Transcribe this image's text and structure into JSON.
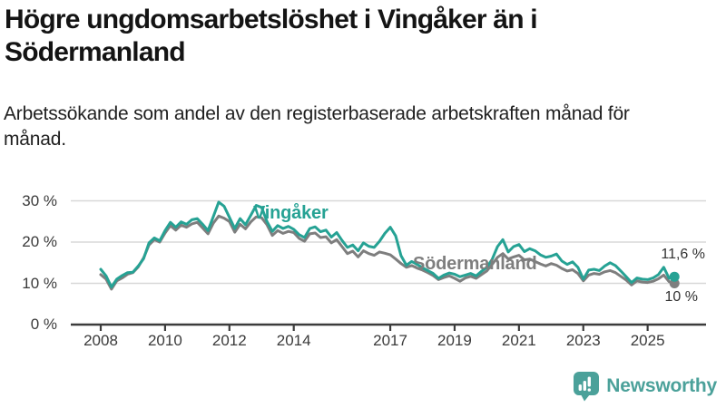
{
  "header": {
    "title": "Högre ungdomsarbetslöshet i Vingåker än i Södermanland",
    "subtitle": "Arbetssökande som andel av den registerbaserade arbetskraften månad för månad."
  },
  "colors": {
    "vingaker": "#26a294",
    "sodermanland": "#7e7e7e",
    "grid": "#d8d8d8",
    "axis": "#3c3c3c",
    "tick_text": "#3a3a3a",
    "value_label_text": "#333333",
    "logo_teal": "#4ba19a"
  },
  "chart_data": {
    "type": "line",
    "title": "Högre ungdomsarbetslöshet i Vingåker än i Södermanland",
    "subtitle": "Arbetssökande som andel av den registerbaserade arbetskraften månad för månad.",
    "unit": "%",
    "grid": "horizontal",
    "legend": "inline-labels",
    "ylim": [
      0,
      32
    ],
    "x_start": 2008.0,
    "x_step_years": 0.1667,
    "y_ticks": [
      {
        "value": 0,
        "label": "0 %"
      },
      {
        "value": 10,
        "label": "10 %"
      },
      {
        "value": 20,
        "label": "20 %"
      },
      {
        "value": 30,
        "label": "30 %"
      }
    ],
    "x_ticks": [
      {
        "value": 2008,
        "label": "2008"
      },
      {
        "value": 2010,
        "label": "2010"
      },
      {
        "value": 2012,
        "label": "2012"
      },
      {
        "value": 2014,
        "label": "2014"
      },
      {
        "value": 2017,
        "label": "2017"
      },
      {
        "value": 2019,
        "label": "2019"
      },
      {
        "value": 2021,
        "label": "2021"
      },
      {
        "value": 2023,
        "label": "2023"
      },
      {
        "value": 2025,
        "label": "2025"
      }
    ],
    "x": [
      2008.0,
      2008.167,
      2008.333,
      2008.5,
      2008.667,
      2008.833,
      2009.0,
      2009.167,
      2009.333,
      2009.5,
      2009.667,
      2009.833,
      2010.0,
      2010.167,
      2010.333,
      2010.5,
      2010.667,
      2010.833,
      2011.0,
      2011.167,
      2011.333,
      2011.5,
      2011.667,
      2011.833,
      2012.0,
      2012.167,
      2012.333,
      2012.5,
      2012.667,
      2012.833,
      2013.0,
      2013.167,
      2013.333,
      2013.5,
      2013.667,
      2013.833,
      2014.0,
      2014.167,
      2014.333,
      2014.5,
      2014.667,
      2014.833,
      2015.0,
      2015.167,
      2015.333,
      2015.5,
      2015.667,
      2015.833,
      2016.0,
      2016.167,
      2016.333,
      2016.5,
      2016.667,
      2016.833,
      2017.0,
      2017.167,
      2017.333,
      2017.5,
      2017.667,
      2017.833,
      2018.0,
      2018.167,
      2018.333,
      2018.5,
      2018.667,
      2018.833,
      2019.0,
      2019.167,
      2019.333,
      2019.5,
      2019.667,
      2019.833,
      2020.0,
      2020.167,
      2020.333,
      2020.5,
      2020.667,
      2020.833,
      2021.0,
      2021.167,
      2021.333,
      2021.5,
      2021.667,
      2021.833,
      2022.0,
      2022.167,
      2022.333,
      2022.5,
      2022.667,
      2022.833,
      2023.0,
      2023.167,
      2023.333,
      2023.5,
      2023.667,
      2023.833,
      2024.0,
      2024.167,
      2024.333,
      2024.5,
      2024.667,
      2024.833,
      2025.0,
      2025.167,
      2025.333,
      2025.5,
      2025.667,
      2025.833
    ],
    "series": [
      {
        "name": "Vingåker",
        "color": "#26a294",
        "end_value": 11.6,
        "end_label": "11,6 %",
        "values": [
          13.4,
          11.8,
          9.1,
          11.0,
          11.9,
          12.6,
          12.7,
          14.2,
          16.0,
          19.8,
          21.0,
          20.3,
          22.8,
          24.8,
          23.6,
          24.9,
          24.3,
          25.4,
          25.7,
          24.3,
          22.8,
          26.2,
          29.7,
          28.7,
          26.0,
          23.3,
          25.7,
          24.2,
          26.5,
          28.9,
          28.4,
          25.0,
          22.6,
          24.0,
          23.3,
          23.8,
          23.1,
          21.8,
          21.1,
          23.3,
          23.7,
          22.5,
          22.9,
          21.2,
          22.3,
          20.4,
          18.7,
          19.3,
          17.9,
          19.8,
          19.0,
          18.7,
          20.2,
          22.1,
          23.6,
          21.5,
          16.7,
          14.4,
          15.3,
          14.6,
          13.8,
          13.1,
          12.4,
          11.2,
          12.0,
          12.5,
          12.2,
          11.6,
          12.0,
          12.4,
          11.8,
          12.9,
          13.9,
          15.8,
          18.9,
          20.6,
          17.6,
          18.9,
          19.4,
          17.7,
          18.4,
          17.9,
          16.9,
          16.3,
          16.6,
          17.1,
          15.4,
          14.6,
          15.2,
          13.9,
          11.0,
          13.2,
          13.4,
          13.1,
          14.2,
          15.0,
          14.3,
          13.0,
          11.6,
          10.2,
          11.3,
          11.0,
          10.9,
          11.3,
          12.1,
          13.9,
          11.2,
          11.6
        ]
      },
      {
        "name": "Södermanland",
        "color": "#7e7e7e",
        "end_value": 10.0,
        "end_label": "10 %",
        "values": [
          12.1,
          11.0,
          8.6,
          10.6,
          11.3,
          12.2,
          12.6,
          14.0,
          16.2,
          19.3,
          20.6,
          20.0,
          22.2,
          24.0,
          22.9,
          24.1,
          23.6,
          24.4,
          24.8,
          23.4,
          22.0,
          24.6,
          26.3,
          25.8,
          25.0,
          22.4,
          24.3,
          23.2,
          24.9,
          26.1,
          25.9,
          24.2,
          21.6,
          22.8,
          22.1,
          22.6,
          22.3,
          20.9,
          20.2,
          22.0,
          22.2,
          21.1,
          21.3,
          19.8,
          20.6,
          18.9,
          17.2,
          17.8,
          16.4,
          17.9,
          17.2,
          16.8,
          17.6,
          17.3,
          16.9,
          15.9,
          14.8,
          13.9,
          14.3,
          13.7,
          13.2,
          12.6,
          11.9,
          10.9,
          11.4,
          11.8,
          11.2,
          10.5,
          11.3,
          11.7,
          11.2,
          12.1,
          13.0,
          14.6,
          16.3,
          17.2,
          15.9,
          16.4,
          16.8,
          15.7,
          15.9,
          15.3,
          14.7,
          14.2,
          14.8,
          14.4,
          13.6,
          13.0,
          13.3,
          12.4,
          10.6,
          12.0,
          12.4,
          12.2,
          12.8,
          13.1,
          12.6,
          11.7,
          10.8,
          9.6,
          10.6,
          10.3,
          10.2,
          10.5,
          11.1,
          12.0,
          10.4,
          10.0
        ]
      }
    ]
  },
  "footer": {
    "brand": "Newsworthy"
  }
}
